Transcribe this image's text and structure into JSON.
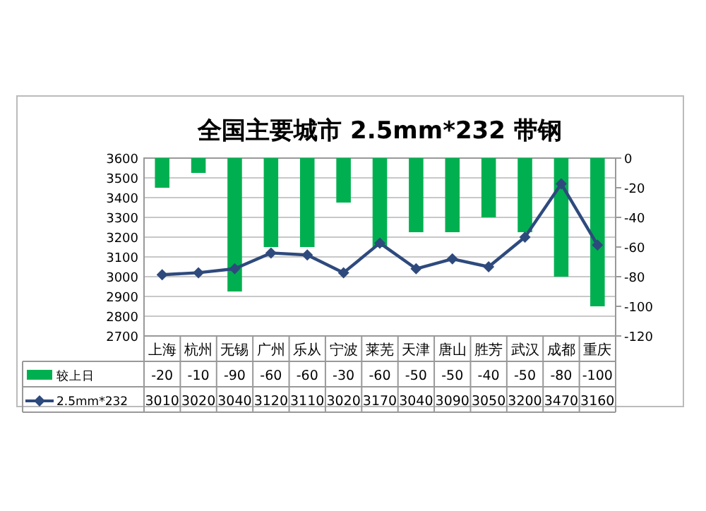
{
  "chart_data": {
    "type": "bar",
    "title": "全国主要城市 2.5mm*232 带钢",
    "categories": [
      "上海",
      "杭州",
      "无锡",
      "广州",
      "乐从",
      "宁波",
      "莱芜",
      "天津",
      "唐山",
      "胜芳",
      "武汉",
      "成都",
      "重庆"
    ],
    "series": [
      {
        "name": "较上日",
        "axis": "y2",
        "color": "#00b050",
        "values": [
          -20,
          -10,
          -90,
          -60,
          -60,
          -30,
          -60,
          -50,
          -50,
          -40,
          -50,
          -80,
          -100
        ]
      },
      {
        "name": "2.5mm*232",
        "type": "line",
        "color": "#2e4a7d",
        "values": [
          3010,
          3020,
          3040,
          3120,
          3110,
          3020,
          3170,
          3040,
          3090,
          3050,
          3200,
          3470,
          3160
        ]
      }
    ],
    "ylim": [
      2700,
      3600
    ],
    "yticks": [
      2700,
      2800,
      2900,
      3000,
      3100,
      3200,
      3300,
      3400,
      3500,
      3600
    ],
    "y2lim": [
      -120,
      0
    ],
    "y2ticks": [
      -120,
      -100,
      -80,
      -60,
      -40,
      -20,
      0
    ],
    "grid": "y",
    "legend": "bottom",
    "data_labels": true,
    "marker": "diamond",
    "line_style": "solid"
  }
}
